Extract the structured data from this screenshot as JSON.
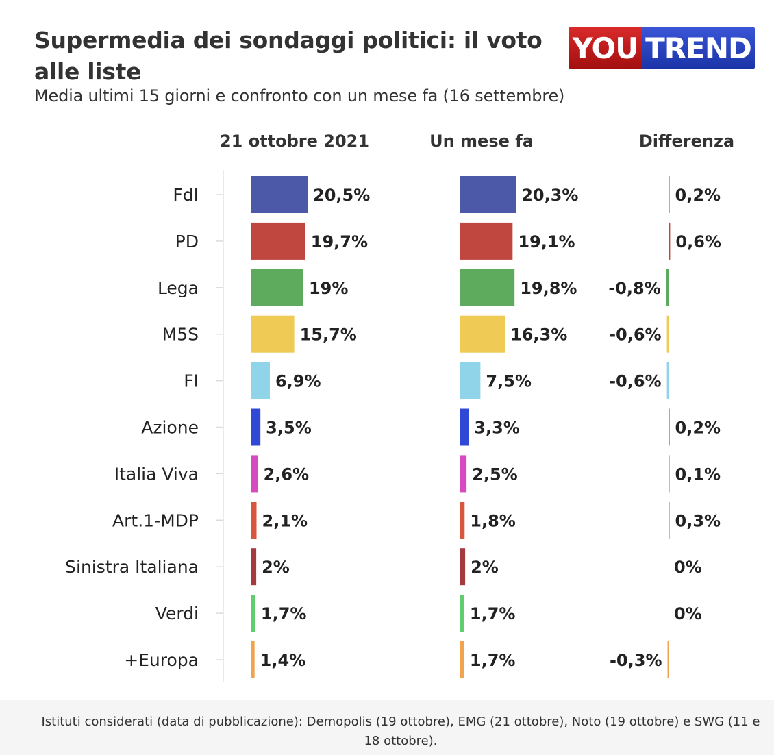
{
  "title": "Supermedia dei sondaggi politici: il voto alle liste",
  "subtitle": "Media ultimi 15 giorni e confronto con un mese fa (16 settembre)",
  "logo": {
    "part1": "YOU",
    "part2": "TREND"
  },
  "footnote": "Istituti considerati (data di pubblicazione): Demopolis (19 ottobre), EMG (21 ottobre), Noto (19 ottobre) e SWG (11 e 18 ottobre).",
  "chart_data": {
    "type": "bar",
    "orientation": "horizontal",
    "columns": [
      "21 ottobre 2021",
      "Un mese fa",
      "Differenza"
    ],
    "categories": [
      "FdI",
      "PD",
      "Lega",
      "M5S",
      "FI",
      "Azione",
      "Italia Viva",
      "Art.1-MDP",
      "Sinistra Italiana",
      "Verdi",
      "+Europa"
    ],
    "series": [
      {
        "name": "21 ottobre 2021",
        "values": [
          20.5,
          19.7,
          19,
          15.7,
          6.9,
          3.5,
          2.6,
          2.1,
          2,
          1.7,
          1.4
        ],
        "labels": [
          "20,5%",
          "19,7%",
          "19%",
          "15,7%",
          "6,9%",
          "3,5%",
          "2,6%",
          "2,1%",
          "2%",
          "1,7%",
          "1,4%"
        ]
      },
      {
        "name": "Un mese fa",
        "values": [
          20.3,
          19.1,
          19.8,
          16.3,
          7.5,
          3.3,
          2.5,
          1.8,
          2,
          1.7,
          1.7
        ],
        "labels": [
          "20,3%",
          "19,1%",
          "19,8%",
          "16,3%",
          "7,5%",
          "3,3%",
          "2,5%",
          "1,8%",
          "2%",
          "1,7%",
          "1,7%"
        ]
      },
      {
        "name": "Differenza",
        "values": [
          0.2,
          0.6,
          -0.8,
          -0.6,
          -0.6,
          0.2,
          0.1,
          0.3,
          0,
          0,
          -0.3
        ],
        "labels": [
          "0,2%",
          "0,6%",
          "-0,8%",
          "-0,6%",
          "-0,6%",
          "0,2%",
          "0,1%",
          "0,3%",
          "0%",
          "0%",
          "-0,3%"
        ]
      }
    ],
    "colors": [
      "#4c58a8",
      "#c0473f",
      "#5fab5e",
      "#efca55",
      "#8fd4e8",
      "#2f48d6",
      "#d64bbf",
      "#d9553d",
      "#a23a40",
      "#62cd6e",
      "#f0a44f"
    ],
    "grid": false,
    "legend": "none"
  }
}
